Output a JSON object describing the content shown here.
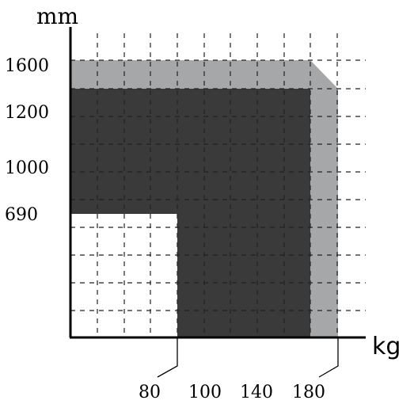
{
  "chart_data": {
    "type": "area",
    "y_unit": "mm",
    "x_unit": "kg",
    "y_tick_labels": [
      "1600",
      "1200",
      "1000",
      "690"
    ],
    "x_tick_labels": [
      "80",
      "100",
      "140",
      "180"
    ],
    "grid": true,
    "grid_style": "dashed",
    "regions": [
      {
        "fill": "#a6a7a9",
        "description_points": [
          [
            0,
            1600
          ],
          [
            180,
            1600
          ],
          [
            180,
            1400
          ]
        ]
      },
      {
        "fill": "#3a3a3a",
        "points": [
          [
            0,
            1400
          ],
          [
            180,
            1400
          ],
          [
            180,
            0
          ],
          [
            80,
            0
          ],
          [
            80,
            690
          ],
          [
            0,
            690
          ]
        ]
      },
      {
        "fill": "#ffffff",
        "points": [
          [
            0,
            690
          ],
          [
            80,
            690
          ],
          [
            80,
            0
          ],
          [
            0,
            0
          ]
        ]
      }
    ],
    "colors": {
      "outer_band": "#a6a7a9",
      "inner_area": "#3a3a3a",
      "axis": "#000000"
    }
  }
}
